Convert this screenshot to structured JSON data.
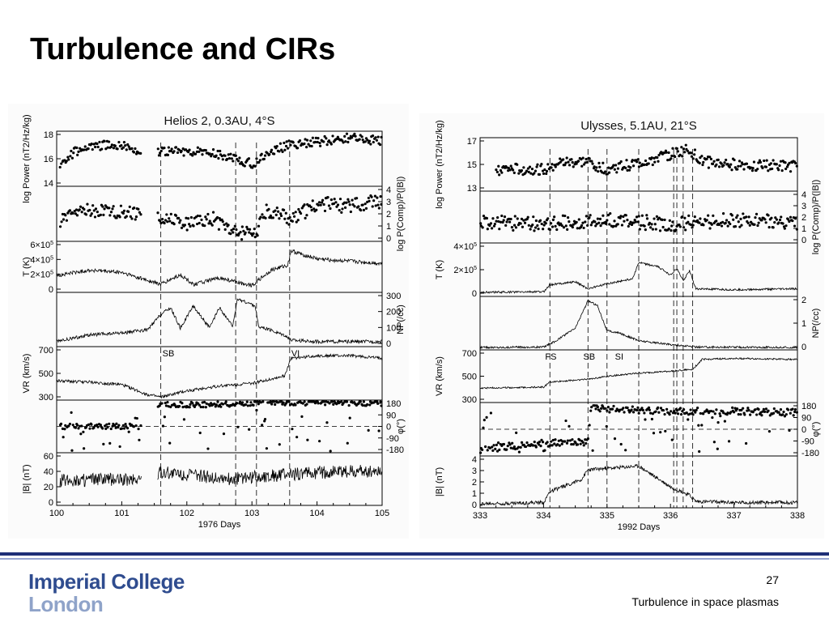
{
  "slide": {
    "title": "Turbulence and CIRs",
    "page_number": "27",
    "footer": "Turbulence in space plasmas",
    "logo_line1": "Imperial College",
    "logo_line2": "London"
  },
  "colors": {
    "brand_dark": "#1f2f77",
    "brand_light": "#9aa7d3",
    "logo_text": "#2f4c8f"
  },
  "chart_data": [
    {
      "type": "line",
      "title": "Helios 2, 0.3AU, 4°S",
      "xlabel": "1976 Days",
      "x_ticks": [
        "100",
        "101",
        "102",
        "103",
        "104",
        "105"
      ],
      "xlim": [
        100,
        105
      ],
      "event_lines": [
        101.6,
        102.75,
        103.07,
        103.58
      ],
      "event_labels": [
        {
          "text": "SB",
          "x": 101.6
        },
        {
          "text": "VI",
          "x": 103.58
        }
      ],
      "panels": [
        {
          "name": "power",
          "ylabel_left": "log Power (nT2/Hz/kg)",
          "left_ticks": [
            "18",
            "16",
            "14"
          ],
          "ylim": [
            14,
            18
          ],
          "style": "dots",
          "segments": [
            [
              100.05,
              101.3
            ],
            [
              101.55,
              105
            ]
          ],
          "profile": [
            [
              100,
              15.4
            ],
            [
              100.3,
              16.6
            ],
            [
              100.6,
              17.0
            ],
            [
              101.0,
              17.1
            ],
            [
              101.3,
              16.5
            ],
            [
              101.6,
              16.5
            ],
            [
              102.0,
              16.6
            ],
            [
              102.4,
              16.4
            ],
            [
              102.75,
              16.0
            ],
            [
              103.0,
              15.6
            ],
            [
              103.3,
              16.6
            ],
            [
              103.6,
              17.1
            ],
            [
              104.0,
              17.3
            ],
            [
              104.5,
              17.6
            ],
            [
              105,
              17.4
            ]
          ],
          "noise": 0.35
        },
        {
          "name": "compressibility",
          "ylabel_right": "log P(Comp)/P(|B|)",
          "right_ticks": [
            "4",
            "3",
            "2",
            "1",
            "0"
          ],
          "ylim": [
            0,
            4
          ],
          "style": "dots",
          "segments": [
            [
              100.05,
              101.3
            ],
            [
              101.55,
              105
            ]
          ],
          "profile": [
            [
              100,
              1.4
            ],
            [
              100.5,
              2.3
            ],
            [
              101.0,
              2.2
            ],
            [
              101.3,
              1.9
            ],
            [
              101.6,
              1.8
            ],
            [
              102.0,
              1.2
            ],
            [
              102.4,
              1.6
            ],
            [
              102.75,
              0.6
            ],
            [
              103.07,
              0.4
            ],
            [
              103.2,
              2.2
            ],
            [
              103.5,
              2.0
            ],
            [
              103.6,
              1.5
            ],
            [
              104.0,
              2.8
            ],
            [
              104.5,
              2.6
            ],
            [
              105,
              3.0
            ]
          ],
          "noise": 0.55
        },
        {
          "name": "temperature",
          "ylabel_left": "T (K)",
          "left_ticks": [
            "6×10^5",
            "4×10^5",
            "2×10^5",
            "0"
          ],
          "ylim": [
            0,
            600000
          ],
          "style": "line",
          "profile": [
            [
              100,
              190000
            ],
            [
              100.5,
              260000
            ],
            [
              101.0,
              230000
            ],
            [
              101.4,
              130000
            ],
            [
              101.6,
              80000
            ],
            [
              101.9,
              200000
            ],
            [
              102.1,
              80000
            ],
            [
              102.5,
              160000
            ],
            [
              102.75,
              110000
            ],
            [
              103.0,
              70000
            ],
            [
              103.3,
              260000
            ],
            [
              103.55,
              320000
            ],
            [
              103.6,
              500000
            ],
            [
              104.0,
              400000
            ],
            [
              104.5,
              370000
            ],
            [
              105,
              340000
            ]
          ],
          "noise": 25000
        },
        {
          "name": "density",
          "ylabel_right": "NP(/cc)",
          "right_ticks": [
            "300",
            "200",
            "100",
            "0"
          ],
          "ylim": [
            0,
            300
          ],
          "style": "line",
          "profile": [
            [
              100,
              20
            ],
            [
              100.5,
              60
            ],
            [
              101.0,
              70
            ],
            [
              101.4,
              90
            ],
            [
              101.6,
              180
            ],
            [
              101.75,
              220
            ],
            [
              101.9,
              100
            ],
            [
              102.1,
              230
            ],
            [
              102.35,
              100
            ],
            [
              102.5,
              220
            ],
            [
              102.7,
              110
            ],
            [
              102.78,
              270
            ],
            [
              103.05,
              230
            ],
            [
              103.1,
              110
            ],
            [
              103.5,
              60
            ],
            [
              103.6,
              30
            ],
            [
              104,
              20
            ],
            [
              105,
              20
            ]
          ],
          "noise": 10
        },
        {
          "name": "velocity",
          "ylabel_left": "VR (km/s)",
          "left_ticks": [
            "700",
            "500",
            "300"
          ],
          "ylim": [
            300,
            700
          ],
          "style": "line",
          "profile": [
            [
              100,
              440
            ],
            [
              100.5,
              430
            ],
            [
              101.0,
              410
            ],
            [
              101.4,
              330
            ],
            [
              101.6,
              310
            ],
            [
              102.0,
              360
            ],
            [
              102.5,
              400
            ],
            [
              103.0,
              420
            ],
            [
              103.5,
              480
            ],
            [
              103.6,
              620
            ],
            [
              104.0,
              640
            ],
            [
              104.5,
              640
            ],
            [
              105,
              620
            ]
          ],
          "noise": 12
        },
        {
          "name": "phi",
          "ylabel_right": "φ(°)",
          "right_ticks": [
            "180",
            "90",
            "0",
            "-90",
            "-180"
          ],
          "ylim": [
            -180,
            180
          ],
          "style": "dots",
          "segments": [
            [
              100.05,
              101.3
            ],
            [
              101.55,
              105
            ]
          ],
          "profile": [
            [
              100,
              0
            ],
            [
              101.3,
              0
            ],
            [
              101.6,
              160
            ],
            [
              102.7,
              160
            ],
            [
              102.75,
              170
            ],
            [
              103.07,
              170
            ],
            [
              103.1,
              175
            ],
            [
              105,
              170
            ]
          ],
          "noise": 20
        },
        {
          "name": "field",
          "ylabel_left": "|B| (nT)",
          "left_ticks": [
            "60",
            "40",
            "20",
            "0"
          ],
          "ylim": [
            0,
            60
          ],
          "style": "line",
          "segments": [
            [
              100.05,
              101.3
            ],
            [
              101.55,
              105
            ]
          ],
          "profile": [
            [
              100,
              28
            ],
            [
              101.3,
              30
            ],
            [
              101.6,
              38
            ],
            [
              102.7,
              30
            ],
            [
              103.0,
              32
            ],
            [
              104,
              38
            ],
            [
              105,
              40
            ]
          ],
          "noise": 8
        }
      ]
    },
    {
      "type": "line",
      "title": "Ulysses, 5.1AU, 21°S",
      "xlabel": "1992 Days",
      "x_ticks": [
        "333",
        "334",
        "335",
        "336",
        "337",
        "338"
      ],
      "xlim": [
        333,
        338
      ],
      "event_lines": [
        334.1,
        334.7,
        335.0,
        335.5,
        336.05,
        336.1,
        336.2,
        336.35
      ],
      "event_labels": [
        {
          "text": "FS",
          "x": 334.0
        },
        {
          "text": "SB",
          "x": 334.6
        },
        {
          "text": "SI",
          "x": 335.1
        }
      ],
      "panels": [
        {
          "name": "power",
          "ylabel_left": "log Power (nT2/Hz/kg)",
          "left_ticks": [
            "17",
            "15",
            "13"
          ],
          "ylim": [
            13,
            17
          ],
          "style": "dots",
          "segments": [
            [
              333.25,
              338
            ]
          ],
          "profile": [
            [
              333.25,
              14.6
            ],
            [
              334.0,
              14.6
            ],
            [
              334.2,
              15.1
            ],
            [
              334.7,
              15.2
            ],
            [
              335.0,
              14.6
            ],
            [
              335.5,
              15.1
            ],
            [
              336.0,
              15.8
            ],
            [
              336.3,
              16.2
            ],
            [
              336.5,
              15.2
            ],
            [
              337.0,
              15.0
            ],
            [
              338,
              14.8
            ]
          ],
          "noise": 0.45
        },
        {
          "name": "compressibility",
          "ylabel_right": "log P(Comp)/P(|B|)",
          "right_ticks": [
            "4",
            "3",
            "2",
            "1",
            "0"
          ],
          "ylim": [
            0,
            4
          ],
          "style": "dots",
          "segments": [
            [
              333,
              338
            ]
          ],
          "profile": [
            [
              333,
              1.6
            ],
            [
              334,
              1.4
            ],
            [
              335,
              1.8
            ],
            [
              336,
              1.4
            ],
            [
              337,
              1.8
            ],
            [
              338,
              1.5
            ]
          ],
          "noise": 0.6
        },
        {
          "name": "temperature",
          "ylabel_left": "T (K)",
          "left_ticks": [
            "4×10^5",
            "2×10^5",
            "0"
          ],
          "ylim": [
            0,
            500000
          ],
          "style": "line",
          "profile": [
            [
              333,
              25000
            ],
            [
              334.0,
              30000
            ],
            [
              334.1,
              100000
            ],
            [
              334.5,
              130000
            ],
            [
              334.7,
              60000
            ],
            [
              335.0,
              110000
            ],
            [
              335.4,
              160000
            ],
            [
              335.5,
              320000
            ],
            [
              335.8,
              280000
            ],
            [
              336.0,
              200000
            ],
            [
              336.1,
              260000
            ],
            [
              336.2,
              140000
            ],
            [
              336.3,
              240000
            ],
            [
              336.4,
              60000
            ],
            [
              337,
              50000
            ],
            [
              338,
              60000
            ]
          ],
          "noise": 10000
        },
        {
          "name": "density",
          "ylabel_right": "NP(/cc)",
          "right_ticks": [
            "2",
            "1",
            "0"
          ],
          "ylim": [
            0,
            2
          ],
          "style": "line",
          "profile": [
            [
              333,
              0.03
            ],
            [
              334.0,
              0.05
            ],
            [
              334.2,
              0.3
            ],
            [
              334.5,
              0.8
            ],
            [
              334.7,
              1.9
            ],
            [
              334.85,
              1.7
            ],
            [
              335.0,
              0.7
            ],
            [
              335.2,
              0.6
            ],
            [
              335.5,
              0.3
            ],
            [
              336.0,
              0.15
            ],
            [
              336.4,
              0.05
            ],
            [
              338,
              0.03
            ]
          ],
          "noise": 0.04
        },
        {
          "name": "velocity",
          "ylabel_left": "VR (km/s)",
          "left_ticks": [
            "700",
            "500",
            "300"
          ],
          "ylim": [
            300,
            800
          ],
          "style": "line",
          "profile": [
            [
              333,
              430
            ],
            [
              334.0,
              440
            ],
            [
              334.1,
              490
            ],
            [
              334.7,
              520
            ],
            [
              335.0,
              550
            ],
            [
              335.5,
              580
            ],
            [
              336.0,
              600
            ],
            [
              336.35,
              620
            ],
            [
              336.5,
              720
            ],
            [
              337,
              730
            ],
            [
              338,
              720
            ]
          ],
          "noise": 8
        },
        {
          "name": "phi",
          "ylabel_right": "φ(°)",
          "right_ticks": [
            "180",
            "90",
            "0",
            "-90",
            "-180"
          ],
          "ylim": [
            -180,
            180
          ],
          "style": "dots",
          "segments": [
            [
              333,
              338
            ]
          ],
          "profile": [
            [
              333,
              -150
            ],
            [
              333.5,
              -120
            ],
            [
              334.0,
              -100
            ],
            [
              334.7,
              -90
            ],
            [
              334.75,
              150
            ],
            [
              335.5,
              140
            ],
            [
              336.0,
              130
            ],
            [
              337,
              130
            ],
            [
              338,
              120
            ]
          ],
          "noise": 25
        },
        {
          "name": "field",
          "ylabel_left": "|B| (nT)",
          "left_ticks": [
            "4",
            "3",
            "2",
            "1",
            "0"
          ],
          "ylim": [
            0,
            4
          ],
          "style": "line",
          "profile": [
            [
              333,
              0.2
            ],
            [
              334.0,
              0.3
            ],
            [
              334.1,
              1.2
            ],
            [
              334.6,
              2.2
            ],
            [
              334.7,
              3.0
            ],
            [
              335.5,
              3.3
            ],
            [
              336.0,
              1.6
            ],
            [
              336.3,
              0.9
            ],
            [
              336.4,
              0.4
            ],
            [
              337,
              0.3
            ],
            [
              338,
              0.3
            ]
          ],
          "noise": 0.15
        }
      ]
    }
  ]
}
